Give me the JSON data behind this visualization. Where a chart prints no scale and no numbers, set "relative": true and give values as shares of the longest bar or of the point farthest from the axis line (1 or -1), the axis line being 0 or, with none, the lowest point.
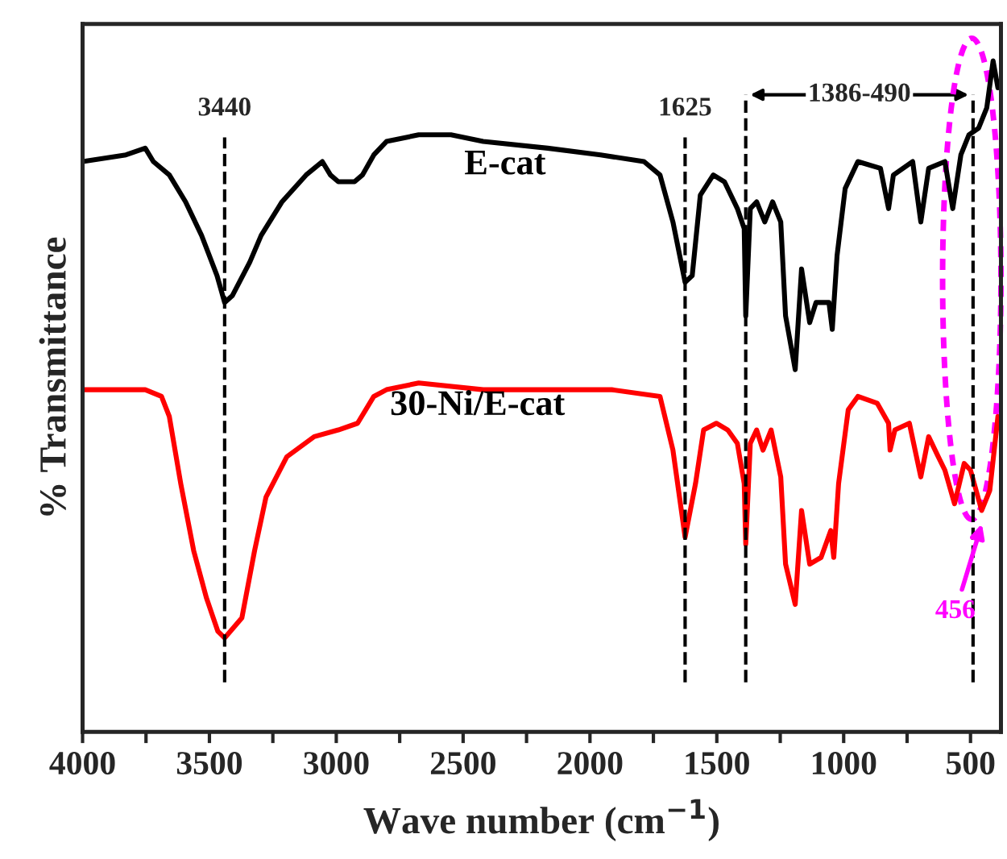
{
  "chart_data": {
    "type": "line",
    "relative": true,
    "xlabel": "Wave number (cm$^{−1}$)",
    "ylabel": "% Transmittance",
    "xlim": [
      4000,
      380
    ],
    "xticks": [
      4000,
      {
        "value": 3750,
        "label": null
      },
      3500,
      {
        "value": 3250,
        "label": null
      },
      3000,
      {
        "value": 2750,
        "label": null
      },
      2500,
      {
        "value": 2250,
        "label": null
      },
      2000,
      {
        "value": 1750,
        "label": null
      },
      1500,
      {
        "value": 1250,
        "label": null
      },
      1000,
      {
        "value": 750,
        "label": null
      },
      500
    ],
    "tick_labels": "x",
    "grid": false,
    "line_style": "solid",
    "marker": "none",
    "series": [
      {
        "name": "E-cat",
        "color": "#000000",
        "x": [
          4000,
          3829,
          3753,
          3721,
          3658,
          3594,
          3531,
          3470,
          3440,
          3410,
          3341,
          3296,
          3214,
          3119,
          3055,
          3023,
          2992,
          2973,
          2928,
          2897,
          2852,
          2802,
          2675,
          2548,
          2421,
          2167,
          1958,
          1787,
          1724,
          1673,
          1625,
          1597,
          1565,
          1514,
          1470,
          1419,
          1392,
          1386,
          1368,
          1343,
          1311,
          1280,
          1248,
          1229,
          1191,
          1166,
          1134,
          1109,
          1058,
          1045,
          1026,
          994,
          944,
          855,
          823,
          804,
          728,
          696,
          665,
          601,
          570,
          538,
          506,
          468,
          436,
          411,
          392
        ],
        "values": [
          0.85,
          0.86,
          0.87,
          0.85,
          0.83,
          0.79,
          0.74,
          0.68,
          0.64,
          0.65,
          0.7,
          0.74,
          0.79,
          0.83,
          0.85,
          0.83,
          0.82,
          0.82,
          0.82,
          0.83,
          0.86,
          0.88,
          0.89,
          0.89,
          0.88,
          0.87,
          0.86,
          0.85,
          0.83,
          0.76,
          0.67,
          0.68,
          0.8,
          0.83,
          0.82,
          0.78,
          0.75,
          0.62,
          0.78,
          0.79,
          0.76,
          0.79,
          0.76,
          0.62,
          0.54,
          0.69,
          0.61,
          0.64,
          0.64,
          0.6,
          0.71,
          0.81,
          0.85,
          0.84,
          0.78,
          0.83,
          0.85,
          0.76,
          0.84,
          0.85,
          0.78,
          0.86,
          0.89,
          0.9,
          0.93,
          1.0,
          0.96
        ]
      },
      {
        "name": "30-Ni/E-cat",
        "color": "#ff0000",
        "x": [
          4000,
          3880,
          3753,
          3689,
          3658,
          3613,
          3562,
          3512,
          3467,
          3440,
          3372,
          3322,
          3277,
          3195,
          3087,
          2992,
          2916,
          2852,
          2802,
          2675,
          2421,
          2167,
          1914,
          1724,
          1673,
          1625,
          1584,
          1552,
          1502,
          1457,
          1419,
          1392,
          1386,
          1368,
          1343,
          1318,
          1286,
          1248,
          1229,
          1191,
          1166,
          1134,
          1089,
          1051,
          1039,
          1020,
          982,
          944,
          868,
          823,
          817,
          798,
          741,
          696,
          665,
          627,
          601,
          563,
          525,
          500,
          456,
          424,
          392
        ],
        "values": [
          0.51,
          0.51,
          0.51,
          0.5,
          0.47,
          0.37,
          0.27,
          0.2,
          0.15,
          0.14,
          0.17,
          0.27,
          0.35,
          0.41,
          0.44,
          0.45,
          0.46,
          0.5,
          0.51,
          0.52,
          0.51,
          0.51,
          0.51,
          0.5,
          0.42,
          0.29,
          0.37,
          0.45,
          0.46,
          0.45,
          0.43,
          0.37,
          0.28,
          0.43,
          0.45,
          0.42,
          0.45,
          0.38,
          0.25,
          0.19,
          0.33,
          0.25,
          0.26,
          0.3,
          0.26,
          0.37,
          0.48,
          0.5,
          0.49,
          0.46,
          0.42,
          0.45,
          0.46,
          0.38,
          0.44,
          0.41,
          0.39,
          0.34,
          0.4,
          0.39,
          0.33,
          0.36,
          0.47
        ]
      }
    ],
    "ref_lines": [
      {
        "axis": "x",
        "value": 3440,
        "label": "3440",
        "color": "#000000",
        "line_style": "dashed"
      },
      {
        "axis": "x",
        "value": 1625,
        "label": "1625",
        "color": "#000000",
        "line_style": "dashed"
      },
      {
        "axis": "x",
        "value": 1386,
        "label": null,
        "color": "#000000",
        "line_style": "dashed"
      },
      {
        "axis": "x",
        "value": 490,
        "label": null,
        "color": "#000000",
        "line_style": "dashed"
      }
    ],
    "annotations": [
      "1386-490",
      "456"
    ]
  }
}
